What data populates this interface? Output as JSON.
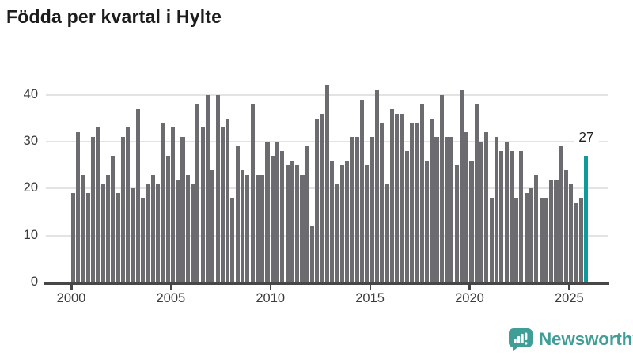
{
  "title": "Födda per kvartal i Hylte",
  "colors": {
    "bar": "#6c6b70",
    "highlight": "#0f9b9b",
    "axis_text": "#3b3b3b",
    "axis_line": "#474747",
    "gridline": "#e3e3e3",
    "title_text": "#1c1c1c",
    "brand_teal": "#3f9e98"
  },
  "chart_data": {
    "type": "bar",
    "title": "Födda per kvartal i Hylte",
    "xlabel": "",
    "ylabel": "",
    "x_unit": "quarter",
    "start_year": 2000,
    "end_year": 2025,
    "x_tick_labels": [
      "2000",
      "2005",
      "2010",
      "2015",
      "2020",
      "2025"
    ],
    "y_ticks": [
      0,
      10,
      20,
      30,
      40
    ],
    "ylim": [
      0,
      44
    ],
    "grid": "horizontal",
    "legend": "none",
    "values": [
      19,
      32,
      23,
      19,
      31,
      33,
      21,
      23,
      27,
      19,
      31,
      33,
      20,
      37,
      18,
      21,
      23,
      21,
      34,
      27,
      33,
      22,
      31,
      23,
      21,
      38,
      33,
      40,
      24,
      40,
      33,
      35,
      18,
      29,
      24,
      23,
      38,
      23,
      23,
      30,
      27,
      30,
      28,
      25,
      26,
      25,
      23,
      29,
      12,
      35,
      36,
      42,
      26,
      21,
      25,
      26,
      31,
      31,
      39,
      25,
      31,
      41,
      34,
      21,
      37,
      36,
      36,
      28,
      34,
      34,
      38,
      26,
      35,
      31,
      40,
      31,
      31,
      25,
      41,
      32,
      26,
      38,
      30,
      32,
      18,
      31,
      28,
      30,
      28,
      18,
      28,
      19,
      20,
      23,
      18,
      18,
      22,
      22,
      29,
      24,
      21,
      17,
      18,
      27
    ],
    "highlight_last": true,
    "last_value_label": "27"
  },
  "logo": {
    "text": "Newsworthy",
    "icon": "speech-bubble-bar-chart-icon"
  }
}
